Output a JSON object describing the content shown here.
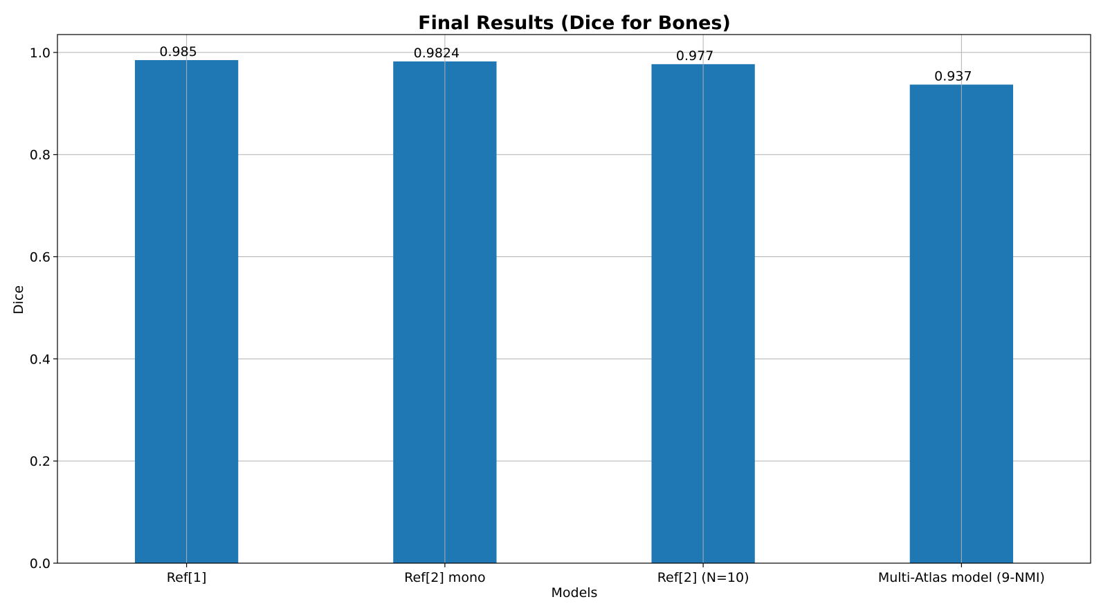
{
  "chart_data": {
    "type": "bar",
    "title": "Final Results (Dice for Bones)",
    "xlabel": "Models",
    "ylabel": "Dice",
    "categories": [
      "Ref[1]",
      "Ref[2] mono",
      "Ref[2] (N=10)",
      "Multi-Atlas model (9-NMI)"
    ],
    "values": [
      0.985,
      0.9824,
      0.977,
      0.937
    ],
    "data_labels": [
      "0.985",
      "0.9824",
      "0.977",
      "0.937"
    ],
    "ylim": [
      0,
      1.0
    ],
    "yticks": [
      "0.0",
      "0.2",
      "0.4",
      "0.6",
      "0.8",
      "1.0"
    ],
    "ytick_values": [
      0,
      0.2,
      0.4,
      0.6,
      0.8,
      1.0
    ],
    "grid": true,
    "bar_color": "#1f77b4",
    "grid_color": "#b0b0b0"
  }
}
